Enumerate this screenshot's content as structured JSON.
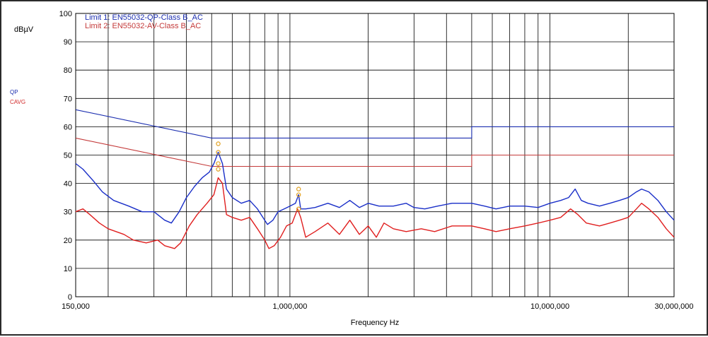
{
  "chart_data": {
    "type": "line",
    "title": "",
    "xlabel": "Frequency Hz",
    "ylabel": "dBµV",
    "x_scale": "log",
    "xlim": [
      150000,
      30000000
    ],
    "ylim": [
      0,
      100
    ],
    "grid": true,
    "y_ticks": [
      0,
      10,
      20,
      30,
      40,
      50,
      60,
      70,
      80,
      90,
      100
    ],
    "y_tick_labels": [
      "0",
      "10",
      "20",
      "30",
      "40",
      "50",
      "60",
      "70",
      "80",
      "90",
      "100"
    ],
    "x_tick_labels": [
      {
        "value": 150000,
        "label": "150,000"
      },
      {
        "value": 1000000,
        "label": "1,000,000"
      },
      {
        "value": 10000000,
        "label": "10,000,000"
      },
      {
        "value": 30000000,
        "label": "30,000,000"
      }
    ],
    "x_gridlines": [
      200000,
      300000,
      400000,
      500000,
      600000,
      700000,
      800000,
      900000,
      1000000,
      2000000,
      3000000,
      4000000,
      5000000,
      6000000,
      7000000,
      8000000,
      9000000,
      10000000,
      20000000
    ],
    "legend_location": "top-left",
    "limits": [
      {
        "name": "Limit 1: EN55032-QP-Class B_AC",
        "color": "#1c2fb0",
        "points": [
          [
            150000,
            66
          ],
          [
            500000,
            56
          ],
          [
            5000000,
            56
          ],
          [
            5000000,
            60
          ],
          [
            30000000,
            60
          ]
        ]
      },
      {
        "name": "Limit 2: EN55032-AV-Class B_AC",
        "color": "#c43a3a",
        "points": [
          [
            150000,
            56
          ],
          [
            500000,
            46
          ],
          [
            5000000,
            46
          ],
          [
            5000000,
            50
          ],
          [
            30000000,
            50
          ]
        ]
      }
    ],
    "side_labels": [
      {
        "text": "QP",
        "color": "#1c2fb0"
      },
      {
        "text": "CAVG",
        "color": "#d22a2a"
      }
    ],
    "series": [
      {
        "name": "QP",
        "color": "#1a2fc8",
        "points": [
          [
            150000,
            47
          ],
          [
            160000,
            45
          ],
          [
            175000,
            41
          ],
          [
            190000,
            37
          ],
          [
            210000,
            34
          ],
          [
            240000,
            32
          ],
          [
            270000,
            30
          ],
          [
            300000,
            30
          ],
          [
            330000,
            27
          ],
          [
            350000,
            26
          ],
          [
            375000,
            30
          ],
          [
            400000,
            35
          ],
          [
            430000,
            39
          ],
          [
            460000,
            42
          ],
          [
            490000,
            44
          ],
          [
            510000,
            47
          ],
          [
            530000,
            51
          ],
          [
            550000,
            47
          ],
          [
            570000,
            38
          ],
          [
            600000,
            35
          ],
          [
            650000,
            33
          ],
          [
            700000,
            34
          ],
          [
            750000,
            31
          ],
          [
            800000,
            27
          ],
          [
            820000,
            25.5
          ],
          [
            860000,
            27
          ],
          [
            900000,
            30
          ],
          [
            950000,
            31
          ],
          [
            1000000,
            32
          ],
          [
            1050000,
            33
          ],
          [
            1080000,
            36
          ],
          [
            1100000,
            31
          ],
          [
            1150000,
            31
          ],
          [
            1250000,
            31.5
          ],
          [
            1400000,
            33
          ],
          [
            1550000,
            31.5
          ],
          [
            1700000,
            34
          ],
          [
            1850000,
            31.5
          ],
          [
            2000000,
            33
          ],
          [
            2200000,
            32
          ],
          [
            2500000,
            32
          ],
          [
            2800000,
            33
          ],
          [
            3000000,
            31.5
          ],
          [
            3300000,
            31
          ],
          [
            3700000,
            32
          ],
          [
            4200000,
            33
          ],
          [
            5000000,
            33
          ],
          [
            5600000,
            32
          ],
          [
            6200000,
            31
          ],
          [
            7000000,
            32
          ],
          [
            8000000,
            32
          ],
          [
            9000000,
            31.5
          ],
          [
            10000000,
            33
          ],
          [
            11000000,
            34
          ],
          [
            11800000,
            35
          ],
          [
            12500000,
            38
          ],
          [
            13200000,
            34
          ],
          [
            14000000,
            33
          ],
          [
            15500000,
            32
          ],
          [
            17000000,
            33
          ],
          [
            18500000,
            34
          ],
          [
            20000000,
            35
          ],
          [
            21500000,
            37
          ],
          [
            22500000,
            38
          ],
          [
            24000000,
            37
          ],
          [
            26000000,
            34
          ],
          [
            28000000,
            30
          ],
          [
            30000000,
            27
          ]
        ]
      },
      {
        "name": "CAVG",
        "color": "#e01f1f",
        "points": [
          [
            150000,
            30
          ],
          [
            160000,
            31
          ],
          [
            170000,
            29
          ],
          [
            185000,
            26
          ],
          [
            200000,
            24
          ],
          [
            230000,
            22
          ],
          [
            250000,
            20
          ],
          [
            280000,
            19
          ],
          [
            310000,
            20
          ],
          [
            330000,
            18
          ],
          [
            360000,
            17
          ],
          [
            380000,
            19
          ],
          [
            410000,
            25
          ],
          [
            440000,
            29
          ],
          [
            480000,
            33
          ],
          [
            510000,
            36
          ],
          [
            530000,
            42
          ],
          [
            550000,
            40
          ],
          [
            570000,
            29
          ],
          [
            600000,
            28
          ],
          [
            650000,
            27
          ],
          [
            700000,
            28
          ],
          [
            750000,
            24
          ],
          [
            800000,
            20
          ],
          [
            830000,
            17
          ],
          [
            870000,
            18
          ],
          [
            920000,
            21
          ],
          [
            970000,
            25
          ],
          [
            1020000,
            26
          ],
          [
            1070000,
            31
          ],
          [
            1100000,
            28
          ],
          [
            1150000,
            21
          ],
          [
            1250000,
            23
          ],
          [
            1400000,
            26
          ],
          [
            1550000,
            22
          ],
          [
            1700000,
            27
          ],
          [
            1850000,
            22
          ],
          [
            2000000,
            25
          ],
          [
            2150000,
            21
          ],
          [
            2300000,
            26
          ],
          [
            2500000,
            24
          ],
          [
            2800000,
            23
          ],
          [
            3200000,
            24
          ],
          [
            3600000,
            23
          ],
          [
            4200000,
            25
          ],
          [
            5000000,
            25
          ],
          [
            5600000,
            24
          ],
          [
            6200000,
            23
          ],
          [
            7000000,
            24
          ],
          [
            8000000,
            25
          ],
          [
            9000000,
            26
          ],
          [
            10000000,
            27
          ],
          [
            11000000,
            28
          ],
          [
            12000000,
            31
          ],
          [
            12800000,
            29
          ],
          [
            13800000,
            26
          ],
          [
            15500000,
            25
          ],
          [
            17000000,
            26
          ],
          [
            18500000,
            27
          ],
          [
            20000000,
            28
          ],
          [
            21500000,
            31
          ],
          [
            22500000,
            33
          ],
          [
            24000000,
            31
          ],
          [
            26000000,
            28
          ],
          [
            28000000,
            24
          ],
          [
            30000000,
            21
          ]
        ]
      }
    ],
    "markers": [
      {
        "x": 530000,
        "values": [
          51,
          54,
          45,
          47
        ],
        "color": "#e0a020"
      },
      {
        "x": 1080000,
        "values": [
          31,
          36,
          38
        ],
        "color": "#e0a020"
      }
    ]
  }
}
